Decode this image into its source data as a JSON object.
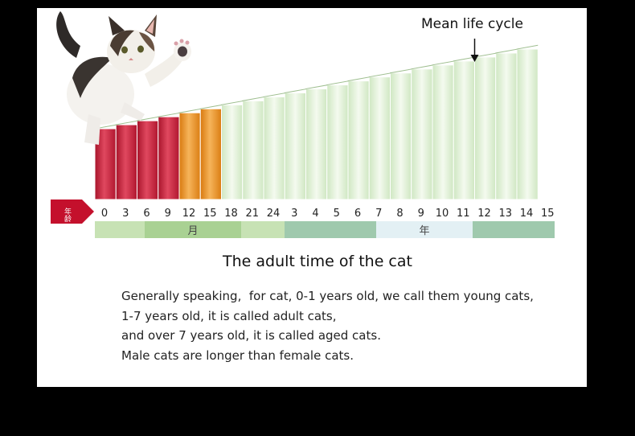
{
  "chart_data": {
    "type": "bar",
    "title": "The adult time of the cat",
    "annotation": "Mean life cycle",
    "axis_badge": "年龄",
    "ticks": [
      "0",
      "3",
      "6",
      "9",
      "12",
      "15",
      "18",
      "21",
      "24",
      "3",
      "4",
      "5",
      "6",
      "7",
      "8",
      "9",
      "10",
      "11",
      "12",
      "13",
      "14",
      "15"
    ],
    "stage_colors": [
      "red",
      "red",
      "red",
      "red",
      "orange",
      "orange",
      "green",
      "green",
      "green",
      "green",
      "green",
      "green",
      "green",
      "green",
      "green",
      "green",
      "green",
      "green",
      "green",
      "green",
      "green"
    ],
    "values": [
      92,
      93,
      94,
      95,
      96,
      97,
      98,
      99,
      100,
      101,
      102,
      103,
      104,
      105,
      106,
      107,
      108,
      109,
      110,
      111,
      112
    ],
    "unit_labels": {
      "months": "月",
      "years": "年"
    },
    "annotation_index": 17
  },
  "colors": {
    "red": "#c4203a",
    "orange": "#e88a18",
    "green": "#d9efcf",
    "band_green": "#c7e2b4",
    "band_teal": "#9fc9ad",
    "band_light": "#e3f0f4"
  },
  "text": {
    "line1": "Generally speaking,  for cat, 0-1 years old, we call them young cats,",
    "line2": "1-7 years old, it is called adult cats,",
    "line3": "and over 7 years old, it is called aged cats.",
    "line4": "Male cats are longer than female cats."
  }
}
